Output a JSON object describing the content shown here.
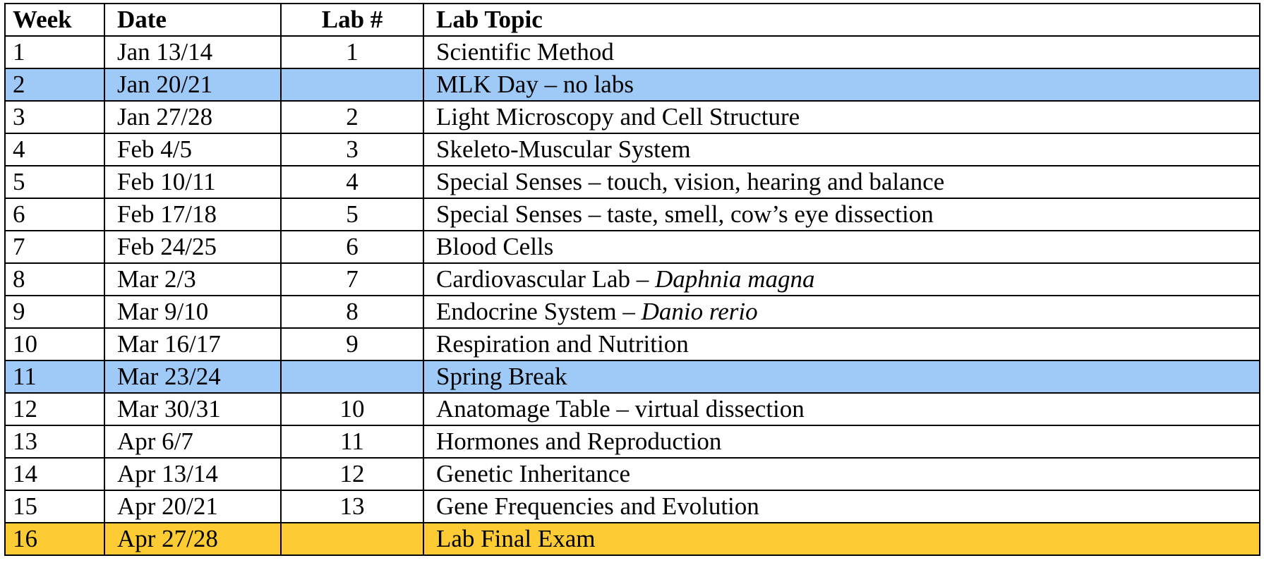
{
  "colors": {
    "holiday_row": "#9fcaf7",
    "exam_row": "#fdcc34",
    "border": "#000000"
  },
  "header": {
    "week": "Week",
    "date": "Date",
    "lab": "Lab #",
    "topic": "Lab Topic"
  },
  "rows": [
    {
      "week": "1",
      "date": "Jan 13/14",
      "lab": "1",
      "topic": "Scientific Method",
      "topic_italic": ""
    },
    {
      "week": "2",
      "date": "Jan 20/21",
      "lab": "",
      "topic": "MLK Day – no labs",
      "topic_italic": "",
      "highlight": "blue"
    },
    {
      "week": "3",
      "date": "Jan 27/28",
      "lab": "2",
      "topic": "Light Microscopy and Cell Structure",
      "topic_italic": ""
    },
    {
      "week": "4",
      "date": "Feb 4/5",
      "lab": "3",
      "topic": "Skeleto-Muscular System",
      "topic_italic": ""
    },
    {
      "week": "5",
      "date": "Feb 10/11",
      "lab": "4",
      "topic": "Special Senses – touch, vision, hearing and balance",
      "topic_italic": ""
    },
    {
      "week": "6",
      "date": "Feb 17/18",
      "lab": "5",
      "topic": "Special Senses – taste, smell, cow’s eye dissection",
      "topic_italic": ""
    },
    {
      "week": "7",
      "date": "Feb 24/25",
      "lab": "6",
      "topic": "Blood Cells",
      "topic_italic": ""
    },
    {
      "week": "8",
      "date": "Mar 2/3",
      "lab": "7",
      "topic": "Cardiovascular Lab – ",
      "topic_italic": "Daphnia magna"
    },
    {
      "week": "9",
      "date": "Mar 9/10",
      "lab": "8",
      "topic": "Endocrine System – ",
      "topic_italic": "Danio rerio"
    },
    {
      "week": "10",
      "date": "Mar 16/17",
      "lab": "9",
      "topic": "Respiration and Nutrition",
      "topic_italic": ""
    },
    {
      "week": "11",
      "date": "Mar 23/24",
      "lab": "",
      "topic": "Spring Break",
      "topic_italic": "",
      "highlight": "blue"
    },
    {
      "week": "12",
      "date": "Mar 30/31",
      "lab": "10",
      "topic": "Anatomage Table – virtual dissection",
      "topic_italic": ""
    },
    {
      "week": "13",
      "date": "Apr 6/7",
      "lab": "11",
      "topic": "Hormones and Reproduction",
      "topic_italic": ""
    },
    {
      "week": "14",
      "date": "Apr 13/14",
      "lab": "12",
      "topic": "Genetic Inheritance",
      "topic_italic": ""
    },
    {
      "week": "15",
      "date": "Apr 20/21",
      "lab": "13",
      "topic": "Gene Frequencies and Evolution",
      "topic_italic": ""
    },
    {
      "week": "16",
      "date": "Apr 27/28",
      "lab": "",
      "topic": "Lab Final Exam",
      "topic_italic": "",
      "highlight": "gold"
    }
  ]
}
